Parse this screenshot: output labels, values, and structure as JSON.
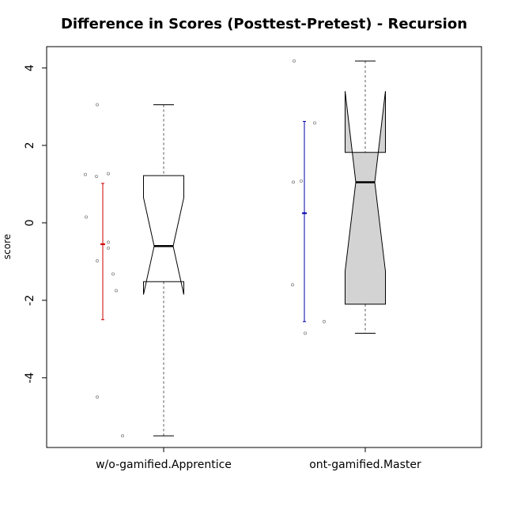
{
  "chart_data": {
    "type": "boxplot",
    "title": "Difference in Scores (Posttest-Pretest) - Recursion",
    "xlabel": "",
    "ylabel": "score",
    "ylim": [
      -5.8,
      4.55
    ],
    "yticks": [
      -4,
      -2,
      0,
      2,
      4
    ],
    "grid": false,
    "categories": [
      "w/o-gamified.Apprentice",
      "ont-gamified.Master"
    ],
    "boxes": [
      {
        "category": "w/o-gamified.Apprentice",
        "fill": "#ffffff",
        "whisker_low": -5.5,
        "q1": -1.52,
        "median": -0.6,
        "q3": 1.22,
        "whisker_high": 3.05,
        "notch_low": -1.85,
        "notch_high": 0.65,
        "mean": -0.55,
        "ci_low": -2.5,
        "ci_high": 1.02,
        "ci_color": "#cc0000",
        "points": [
          3.05,
          1.27,
          1.25,
          1.2,
          0.15,
          -0.5,
          -0.65,
          -0.98,
          -1.32,
          -1.75,
          -4.5,
          -5.5
        ]
      },
      {
        "category": "ont-gamified.Master",
        "fill": "#d3d3d3",
        "whisker_low": -2.85,
        "q1": -2.1,
        "median": 1.05,
        "q3": 1.82,
        "whisker_high": 4.18,
        "notch_low": -1.25,
        "notch_high": 3.4,
        "mean": 0.25,
        "ci_low": -2.55,
        "ci_high": 2.62,
        "ci_color": "#0000aa",
        "points": [
          4.18,
          2.58,
          1.08,
          1.05,
          -1.6,
          -2.55,
          -2.85
        ]
      }
    ]
  }
}
